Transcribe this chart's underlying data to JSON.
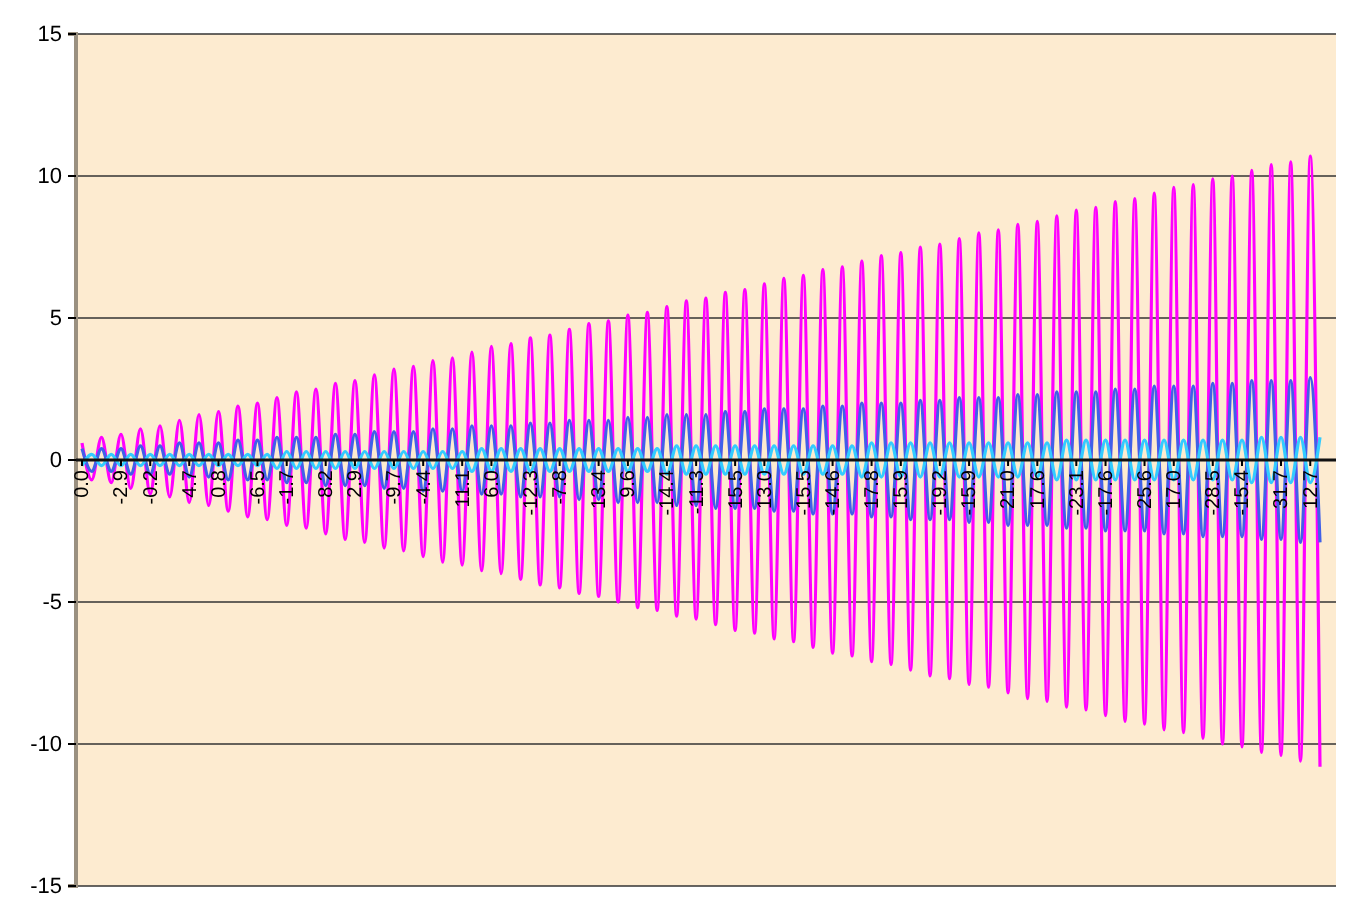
{
  "chart_data": {
    "type": "line",
    "categories": [
      "0.0",
      null,
      null,
      null,
      "-2.9",
      null,
      null,
      "-0.2",
      null,
      null,
      null,
      "4.7",
      null,
      null,
      "0.8",
      null,
      null,
      null,
      "-6.5",
      null,
      null,
      "-1.7",
      null,
      null,
      null,
      "8.2",
      null,
      null,
      "2.9",
      null,
      null,
      null,
      "-9.7",
      null,
      null,
      "-4.4",
      null,
      null,
      null,
      "11.1",
      null,
      null,
      "6.0",
      null,
      null,
      null,
      "-12.3",
      null,
      null,
      "-7.8",
      null,
      null,
      null,
      "13.4",
      null,
      null,
      "9.6",
      null,
      null,
      null,
      "-14.4",
      null,
      null,
      "-11.3",
      null,
      null,
      null,
      "15.5",
      null,
      null,
      "13.0",
      null,
      null,
      null,
      "-15.5",
      null,
      null,
      "-14.6",
      null,
      null,
      null,
      "17.8",
      null,
      null,
      "15.9",
      null,
      null,
      null,
      "-19.2",
      null,
      null,
      "-15.9",
      null,
      null,
      null,
      "21.0",
      null,
      null,
      "17.6",
      null,
      null,
      null,
      "-23.1",
      null,
      null,
      "-17.6",
      null,
      null,
      null,
      "25.6",
      null,
      null,
      "17.0",
      null,
      null,
      null,
      "-28.5",
      null,
      null,
      "-15.4",
      null,
      null,
      null,
      "31.7",
      null,
      null,
      "12.7",
      null
    ],
    "series": [
      {
        "color": "#ff00ff",
        "values": [
          0.6,
          -0.7,
          0.8,
          -0.8,
          0.9,
          -1.0,
          1.1,
          -1.2,
          1.2,
          -1.3,
          1.4,
          -1.5,
          1.6,
          -1.6,
          1.7,
          -1.8,
          1.9,
          -2.0,
          2.0,
          -2.1,
          2.2,
          -2.3,
          2.4,
          -2.4,
          2.5,
          -2.6,
          2.7,
          -2.8,
          2.8,
          -2.9,
          3.0,
          -3.1,
          3.2,
          -3.2,
          3.3,
          -3.4,
          3.5,
          -3.6,
          3.6,
          -3.7,
          3.8,
          -3.9,
          4.0,
          -4.0,
          4.1,
          -4.2,
          4.3,
          -4.4,
          4.4,
          -4.5,
          4.6,
          -4.7,
          4.8,
          -4.8,
          4.9,
          -5.0,
          5.1,
          -5.2,
          5.2,
          -5.3,
          5.4,
          -5.5,
          5.6,
          -5.6,
          5.7,
          -5.8,
          5.9,
          -6.0,
          6.0,
          -6.1,
          6.2,
          -6.3,
          6.4,
          -6.4,
          6.5,
          -6.6,
          6.7,
          -6.8,
          6.8,
          -6.9,
          7.0,
          -7.1,
          7.2,
          -7.2,
          7.3,
          -7.4,
          7.5,
          -7.6,
          7.6,
          -7.7,
          7.8,
          -7.9,
          8.0,
          -8.0,
          8.1,
          -8.2,
          8.3,
          -8.4,
          8.4,
          -8.5,
          8.6,
          -8.7,
          8.8,
          -8.8,
          8.9,
          -9.0,
          9.1,
          -9.2,
          9.2,
          -9.3,
          9.4,
          -9.5,
          9.6,
          -9.6,
          9.7,
          -9.8,
          9.9,
          -10.0,
          10.0,
          -10.1,
          10.2,
          -10.3,
          10.4,
          -10.4,
          10.5,
          -10.6,
          10.7,
          -10.8
        ]
      },
      {
        "color": "#4060e8",
        "values": [
          0.4,
          -0.4,
          0.4,
          -0.4,
          0.4,
          -0.5,
          0.5,
          -0.5,
          0.5,
          -0.5,
          0.6,
          -0.6,
          0.6,
          -0.6,
          0.6,
          -0.7,
          0.7,
          -0.7,
          0.7,
          -0.7,
          0.8,
          -0.8,
          0.8,
          -0.8,
          0.8,
          -0.9,
          0.9,
          -0.9,
          0.9,
          -0.9,
          1.0,
          -1.0,
          1.0,
          -1.0,
          1.0,
          -1.1,
          1.1,
          -1.1,
          1.1,
          -1.1,
          1.2,
          -1.2,
          1.2,
          -1.2,
          1.2,
          -1.3,
          1.3,
          -1.3,
          1.3,
          -1.3,
          1.4,
          -1.4,
          1.4,
          -1.4,
          1.4,
          -1.5,
          1.5,
          -1.5,
          1.5,
          -1.5,
          1.6,
          -1.6,
          1.6,
          -1.6,
          1.6,
          -1.7,
          1.7,
          -1.7,
          1.7,
          -1.7,
          1.8,
          -1.8,
          1.8,
          -1.8,
          1.8,
          -1.9,
          1.9,
          -1.9,
          1.9,
          -1.9,
          2.0,
          -2.0,
          2.0,
          -2.0,
          2.0,
          -2.1,
          2.1,
          -2.1,
          2.1,
          -2.1,
          2.2,
          -2.2,
          2.2,
          -2.2,
          2.2,
          -2.3,
          2.3,
          -2.3,
          2.3,
          -2.3,
          2.4,
          -2.4,
          2.4,
          -2.4,
          2.4,
          -2.5,
          2.5,
          -2.5,
          2.5,
          -2.5,
          2.6,
          -2.6,
          2.6,
          -2.6,
          2.6,
          -2.7,
          2.7,
          -2.7,
          2.7,
          -2.7,
          2.8,
          -2.8,
          2.8,
          -2.8,
          2.8,
          -2.9,
          2.9,
          -2.9
        ]
      },
      {
        "color": "#33ccff",
        "values": [
          -0.2,
          0.2,
          -0.2,
          0.2,
          -0.2,
          0.2,
          -0.2,
          0.2,
          -0.2,
          0.2,
          -0.2,
          0.2,
          -0.2,
          0.2,
          -0.2,
          0.2,
          -0.2,
          0.2,
          -0.2,
          0.2,
          -0.3,
          0.3,
          -0.3,
          0.3,
          -0.3,
          0.3,
          -0.3,
          0.3,
          -0.3,
          0.3,
          -0.3,
          0.3,
          -0.3,
          0.3,
          -0.3,
          0.3,
          -0.3,
          0.3,
          -0.3,
          0.3,
          -0.4,
          0.4,
          -0.4,
          0.4,
          -0.4,
          0.4,
          -0.4,
          0.4,
          -0.4,
          0.4,
          -0.4,
          0.4,
          -0.4,
          0.4,
          -0.4,
          0.4,
          -0.4,
          0.4,
          -0.4,
          0.4,
          -0.5,
          0.5,
          -0.5,
          0.5,
          -0.5,
          0.5,
          -0.5,
          0.5,
          -0.5,
          0.5,
          -0.5,
          0.5,
          -0.5,
          0.5,
          -0.5,
          0.5,
          -0.5,
          0.5,
          -0.5,
          0.5,
          -0.6,
          0.6,
          -0.6,
          0.6,
          -0.6,
          0.6,
          -0.6,
          0.6,
          -0.6,
          0.6,
          -0.6,
          0.6,
          -0.6,
          0.6,
          -0.6,
          0.6,
          -0.6,
          0.6,
          -0.6,
          0.6,
          -0.7,
          0.7,
          -0.7,
          0.7,
          -0.7,
          0.7,
          -0.7,
          0.7,
          -0.7,
          0.7,
          -0.7,
          0.7,
          -0.7,
          0.7,
          -0.7,
          0.7,
          -0.7,
          0.7,
          -0.7,
          0.7,
          -0.8,
          0.8,
          -0.8,
          0.8,
          -0.8,
          0.8,
          -0.8,
          0.8
        ]
      }
    ],
    "ylim": [
      -15,
      15
    ],
    "yticks": [
      -15,
      -10,
      -5,
      0,
      5,
      10,
      15
    ],
    "grid": "y",
    "marker": "none",
    "line_style": "solid"
  }
}
